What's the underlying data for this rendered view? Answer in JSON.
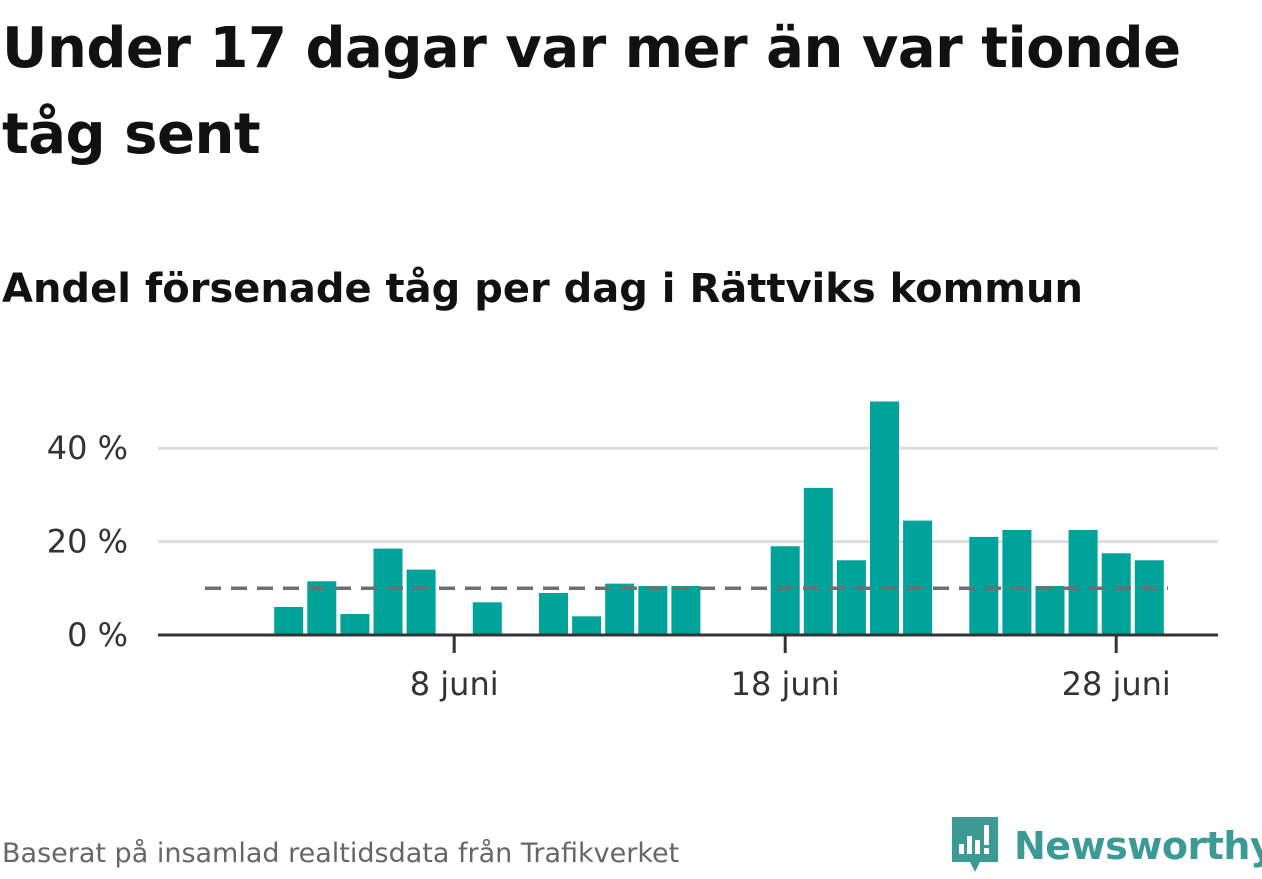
{
  "title": "Under 17 dagar var mer än var tionde tåg sent",
  "subtitle": "Andel försenade tåg per dag i Rättviks kommun",
  "source": "Baserat på insamlad realtidsdata från Trafikverket",
  "brand": {
    "name": "Newsworthy",
    "icon": "newsworthy-logo-icon",
    "color": "#3b9b94"
  },
  "chart_data": {
    "type": "bar",
    "x_unit": "day of June",
    "x": [
      1,
      2,
      3,
      4,
      5,
      6,
      7,
      8,
      9,
      10,
      11,
      12,
      13,
      14,
      15,
      16,
      17,
      18,
      19,
      20,
      21,
      22,
      23,
      24,
      25,
      26,
      27,
      28,
      29,
      30
    ],
    "values": [
      0,
      0,
      6,
      11.5,
      4.5,
      18.5,
      14,
      0,
      7,
      0,
      9,
      4,
      11,
      10.5,
      10.5,
      0,
      0,
      19,
      31.5,
      16,
      50,
      24.5,
      0,
      21,
      22.5,
      10.5,
      22.5,
      17.5,
      16,
      0
    ],
    "value_unit": "%",
    "reference_line": {
      "value": 10,
      "style": "dashed"
    },
    "xticks": [
      {
        "day": 8,
        "label": "8 juni"
      },
      {
        "day": 18,
        "label": "18 juni"
      },
      {
        "day": 28,
        "label": "28 juni"
      }
    ],
    "yticks": [
      {
        "value": 0,
        "label": "0 %"
      },
      {
        "value": 20,
        "label": "20 %"
      },
      {
        "value": 40,
        "label": "40 %"
      }
    ],
    "ylim": [
      0,
      50
    ],
    "grid": true,
    "colors": {
      "bar": "#00a39a",
      "reference": "#6f6f73",
      "grid": "#dddddd",
      "axis": "#333333"
    }
  }
}
